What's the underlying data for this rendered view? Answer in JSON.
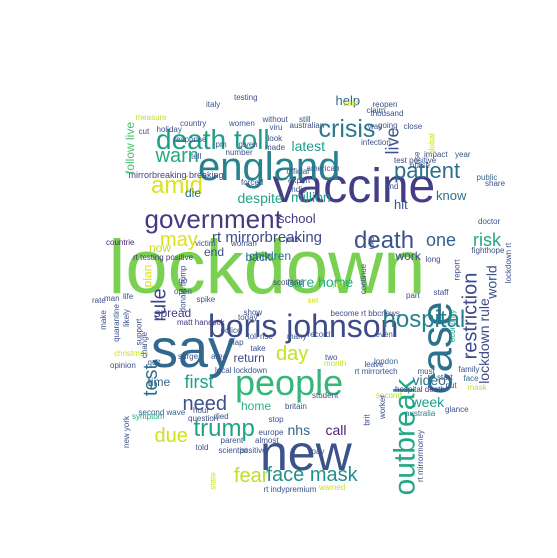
{
  "wordcloud": {
    "words": [
      {
        "text": "lockdown",
        "color": "#7ad151"
      },
      {
        "text": "say",
        "color": "#31688e"
      },
      {
        "text": "vaccine",
        "color": "#433e85"
      },
      {
        "text": "new",
        "color": "#3b528b"
      },
      {
        "text": "england",
        "color": "#26828e"
      },
      {
        "text": "people",
        "color": "#35b779"
      },
      {
        "text": "case",
        "color": "#2c728e"
      },
      {
        "text": "boris johnson",
        "color": "#3e4a89"
      },
      {
        "text": "government",
        "color": "#443983"
      },
      {
        "text": "death toll",
        "color": "#1f9e89"
      },
      {
        "text": "outbreak",
        "color": "#22a884"
      },
      {
        "text": "crisis",
        "color": "#2a788e"
      },
      {
        "text": "hospital",
        "color": "#26828e"
      },
      {
        "text": "trump",
        "color": "#20a486"
      },
      {
        "text": "amid",
        "color": "#dde318"
      },
      {
        "text": "death",
        "color": "#3b528b"
      },
      {
        "text": "patient",
        "color": "#2d708e"
      },
      {
        "text": "restriction",
        "color": "#3e4989"
      },
      {
        "text": "face mask",
        "color": "#21918c"
      },
      {
        "text": "fear",
        "color": "#bddf26"
      },
      {
        "text": "may",
        "color": "#dde318"
      },
      {
        "text": "first",
        "color": "#1fa187"
      },
      {
        "text": "need",
        "color": "#3b528b"
      },
      {
        "text": "day",
        "color": "#c8e020"
      },
      {
        "text": "due",
        "color": "#d0e11c"
      },
      {
        "text": "test",
        "color": "#2d708e"
      },
      {
        "text": "rule",
        "color": "#3e4989"
      },
      {
        "text": "warn",
        "color": "#22a884"
      },
      {
        "text": "live",
        "color": "#3b528b"
      },
      {
        "text": "one",
        "color": "#355f8d"
      },
      {
        "text": "risk",
        "color": "#22a884"
      },
      {
        "text": "rt mirrorbreaking",
        "color": "#3e4a89"
      },
      {
        "text": "care home",
        "color": "#25ac82"
      },
      {
        "text": "world",
        "color": "#3b528b"
      },
      {
        "text": "lockdown rule",
        "color": "#3e4a89"
      },
      {
        "text": "call",
        "color": "#481f70"
      },
      {
        "text": "nhs",
        "color": "#31688e"
      },
      {
        "text": "video",
        "color": "#2c728e"
      },
      {
        "text": "week",
        "color": "#1f9e89"
      },
      {
        "text": "latest",
        "color": "#1f9e89"
      },
      {
        "text": "despite",
        "color": "#20a486"
      },
      {
        "text": "million",
        "color": "#1f9e89"
      },
      {
        "text": "help",
        "color": "#31688e"
      },
      {
        "text": "hit",
        "color": "#3b528b"
      },
      {
        "text": "know",
        "color": "#2c728e"
      },
      {
        "text": "school",
        "color": "#453781"
      },
      {
        "text": "back",
        "color": "#31688e"
      },
      {
        "text": "die",
        "color": "#2d708e"
      },
      {
        "text": "children",
        "color": "#2c728e"
      },
      {
        "text": "spread",
        "color": "#443983"
      },
      {
        "text": "return",
        "color": "#3e4a89"
      },
      {
        "text": "home",
        "color": "#29af7f"
      },
      {
        "text": "time",
        "color": "#355f8d"
      },
      {
        "text": "end",
        "color": "#3b528b"
      },
      {
        "text": "work",
        "color": "#3e4a89"
      },
      {
        "text": "now",
        "color": "#c2df23"
      },
      {
        "text": "plan",
        "color": "#d8e219"
      },
      {
        "text": "follow live",
        "color": "#4ac16d"
      },
      {
        "text": "mirrorbreaking breaking",
        "color": "#414487"
      },
      {
        "text": "rt testing positive",
        "color": "#463480"
      },
      {
        "text": "countrie",
        "color": "#482475"
      },
      {
        "text": "second wave",
        "color": "#355f8d"
      },
      {
        "text": "matt hancock",
        "color": "#46337e"
      },
      {
        "text": "rt mirrortech",
        "color": "#39568c"
      },
      {
        "text": "local lockdown",
        "color": "#3b528b"
      },
      {
        "text": "become rt bbcnews",
        "color": "#3e4a89"
      },
      {
        "text": "scotland",
        "color": "#3f4788"
      },
      {
        "text": "symptom",
        "color": "#22a884"
      },
      {
        "text": "hospital death",
        "color": "#463480"
      },
      {
        "text": "second",
        "color": "#b5de2b"
      },
      {
        "text": "australia",
        "color": "#277f8e"
      },
      {
        "text": "london",
        "color": "#31688e"
      },
      {
        "text": "must",
        "color": "#3b528b"
      },
      {
        "text": "public",
        "color": "#31688e"
      },
      {
        "text": "doctor",
        "color": "#3b528b"
      },
      {
        "text": "fighthope",
        "color": "#3b528b"
      },
      {
        "text": "staff",
        "color": "#3b528b"
      },
      {
        "text": "economy",
        "color": "#20a486"
      },
      {
        "text": "family",
        "color": "#3b528b"
      },
      {
        "text": "face",
        "color": "#31688e"
      },
      {
        "text": "mask",
        "color": "#c8e020"
      },
      {
        "text": "start",
        "color": "#3b528b"
      },
      {
        "text": "put",
        "color": "#3b528b"
      },
      {
        "text": "testing",
        "color": "#3b528b"
      },
      {
        "text": "claim",
        "color": "#3b528b"
      },
      {
        "text": "thousand",
        "color": "#3b528b"
      },
      {
        "text": "reopen",
        "color": "#3b528b"
      },
      {
        "text": "said",
        "color": "#c8e020"
      },
      {
        "text": "infection",
        "color": "#3b528b"
      },
      {
        "text": "close",
        "color": "#3b528b"
      },
      {
        "text": "year",
        "color": "#3b528b"
      },
      {
        "text": "italy",
        "color": "#3b528b"
      },
      {
        "text": "country",
        "color": "#3b528b"
      },
      {
        "text": "response",
        "color": "#3b528b"
      },
      {
        "text": "tell",
        "color": "#3b528b"
      },
      {
        "text": "number",
        "color": "#3b528b"
      },
      {
        "text": "women",
        "color": "#3b528b"
      },
      {
        "text": "viru",
        "color": "#3b528b"
      },
      {
        "text": "forced",
        "color": "#3b528b"
      },
      {
        "text": "india",
        "color": "#3b528b"
      },
      {
        "text": "pub",
        "color": "#3b528b"
      },
      {
        "text": "woman",
        "color": "#3b528b"
      },
      {
        "text": "show",
        "color": "#3b528b"
      },
      {
        "text": "take",
        "color": "#3b528b"
      },
      {
        "text": "toll rise",
        "color": "#3b528b"
      },
      {
        "text": "many",
        "color": "#3b528b"
      },
      {
        "text": "record",
        "color": "#3b528b"
      },
      {
        "text": "two",
        "color": "#3b528b"
      },
      {
        "text": "month",
        "color": "#c8e020"
      },
      {
        "text": "today",
        "color": "#3b528b"
      },
      {
        "text": "police",
        "color": "#3b528b"
      },
      {
        "text": "surge",
        "color": "#3b528b"
      },
      {
        "text": "area",
        "color": "#3b528b"
      },
      {
        "text": "died",
        "color": "#3b528b"
      },
      {
        "text": "britain",
        "color": "#3b528b"
      },
      {
        "text": "student",
        "color": "#3b528b"
      },
      {
        "text": "stop",
        "color": "#3b528b"
      },
      {
        "text": "europe",
        "color": "#3b528b"
      },
      {
        "text": "told",
        "color": "#3b528b"
      },
      {
        "text": "parent",
        "color": "#3b528b"
      },
      {
        "text": "almost",
        "color": "#3b528b"
      },
      {
        "text": "rt indypremium",
        "color": "#3b528b"
      },
      {
        "text": "warned",
        "color": "#c8e020"
      },
      {
        "text": "state",
        "color": "#c8e020"
      },
      {
        "text": "new york",
        "color": "#3b528b"
      },
      {
        "text": "opinion",
        "color": "#3b528b"
      },
      {
        "text": "christmas",
        "color": "#c8e020"
      },
      {
        "text": "man",
        "color": "#3b528b"
      },
      {
        "text": "life",
        "color": "#3b528b"
      },
      {
        "text": "rate",
        "color": "#3b528b"
      },
      {
        "text": "make",
        "color": "#3b528b"
      },
      {
        "text": "quarantine",
        "color": "#3b528b"
      },
      {
        "text": "likely",
        "color": "#3b528b"
      },
      {
        "text": "support",
        "color": "#3b528b"
      },
      {
        "text": "change",
        "color": "#3b528b"
      },
      {
        "text": "question",
        "color": "#3b528b"
      },
      {
        "text": "hour",
        "color": "#3b528b"
      },
      {
        "text": "rt mirrormoney",
        "color": "#3b528b"
      },
      {
        "text": "glance",
        "color": "#3b528b"
      },
      {
        "text": "report",
        "color": "#3b528b"
      },
      {
        "text": "lockdown rt",
        "color": "#3b528b"
      },
      {
        "text": "share",
        "color": "#3b528b"
      },
      {
        "text": "impact",
        "color": "#3b528b"
      },
      {
        "text": "long",
        "color": "#3b528b"
      },
      {
        "text": "nurse",
        "color": "#3b528b"
      },
      {
        "text": "going",
        "color": "#3b528b"
      },
      {
        "text": "way",
        "color": "#3b528b"
      },
      {
        "text": "still",
        "color": "#3b528b"
      },
      {
        "text": "american",
        "color": "#3b528b"
      },
      {
        "text": "official",
        "color": "#3b528b"
      },
      {
        "text": "expert",
        "color": "#3b528b"
      },
      {
        "text": "australian",
        "color": "#3b528b"
      },
      {
        "text": "made",
        "color": "#3b528b"
      },
      {
        "text": "look",
        "color": "#3b528b"
      },
      {
        "text": "pm",
        "color": "#3b528b"
      },
      {
        "text": "given",
        "color": "#3b528b"
      },
      {
        "text": "without",
        "color": "#3b528b"
      },
      {
        "text": "holiday",
        "color": "#3b528b"
      },
      {
        "text": "cut",
        "color": "#3b528b"
      },
      {
        "text": "measure",
        "color": "#c8e020"
      },
      {
        "text": "victim",
        "color": "#3b528b"
      },
      {
        "text": "donald trump",
        "color": "#3b528b"
      },
      {
        "text": "spike",
        "color": "#3b528b"
      },
      {
        "text": "map",
        "color": "#3b528b"
      },
      {
        "text": "go",
        "color": "#3b528b"
      },
      {
        "text": "open",
        "color": "#3b528b"
      },
      {
        "text": "job",
        "color": "#c8e020"
      },
      {
        "text": "part",
        "color": "#3b528b"
      },
      {
        "text": "leave",
        "color": "#3b528b"
      },
      {
        "text": "even",
        "color": "#3b528b"
      },
      {
        "text": "set",
        "color": "#c8e020"
      },
      {
        "text": "pay",
        "color": "#3b528b"
      },
      {
        "text": "positive",
        "color": "#3b528b"
      },
      {
        "text": "scientist",
        "color": "#3b528b"
      },
      {
        "text": "find",
        "color": "#3b528b"
      },
      {
        "text": "uks",
        "color": "#3b528b"
      },
      {
        "text": "test positive",
        "color": "#3b528b"
      },
      {
        "text": "continue",
        "color": "#3b528b"
      },
      {
        "text": "rise",
        "color": "#3b528b"
      },
      {
        "text": "global",
        "color": "#c8e020"
      },
      {
        "text": "worker",
        "color": "#3b528b"
      },
      {
        "text": "brit",
        "color": "#3b528b"
      },
      {
        "text": "quit",
        "color": "#3b528b"
      }
    ]
  }
}
